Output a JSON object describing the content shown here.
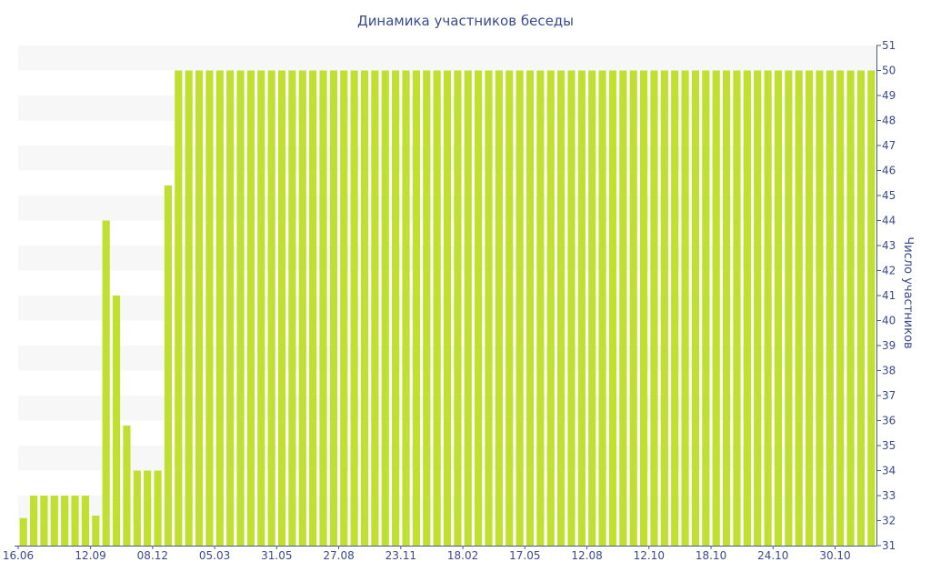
{
  "chart_data": {
    "type": "bar",
    "title": "Динамика участников беседы",
    "ylabel": "Число участников",
    "xlabel": "",
    "ylim": [
      31,
      51
    ],
    "yticks": [
      31,
      32,
      33,
      34,
      35,
      36,
      37,
      38,
      39,
      40,
      41,
      42,
      43,
      44,
      45,
      46,
      47,
      48,
      49,
      50,
      51
    ],
    "x_tick_labels": [
      "16.06",
      "12.09",
      "08.12",
      "05.03",
      "31.05",
      "27.08",
      "23.11",
      "18.02",
      "17.05",
      "12.08",
      "12.10",
      "18.10",
      "24.10",
      "30.10"
    ],
    "x_tick_positions": [
      0,
      6.5,
      12.5,
      18.5,
      24.5,
      30.5,
      36.5,
      42.5,
      48.5,
      54.5,
      60.5,
      66.5,
      72.5,
      78.5
    ],
    "values": [
      32.1,
      33,
      33,
      33,
      33,
      33,
      33,
      32.2,
      44,
      41,
      35.8,
      34,
      34,
      34,
      45.4,
      50,
      50,
      50,
      50,
      50,
      50,
      50,
      50,
      50,
      50,
      50,
      50,
      50,
      50,
      50,
      50,
      50,
      50,
      50,
      50,
      50,
      50,
      50,
      50,
      50,
      50,
      50,
      50,
      50,
      50,
      50,
      50,
      50,
      50,
      50,
      50,
      50,
      50,
      50,
      50,
      50,
      50,
      50,
      50,
      50,
      50,
      50,
      50,
      50,
      50,
      50,
      50,
      50,
      50,
      50,
      50,
      50,
      50,
      50,
      50,
      50,
      50,
      50,
      50,
      50,
      50,
      50,
      50
    ],
    "grid": "horizontal-bands",
    "y_axis_side": "right",
    "colors": {
      "bar": "#bfe031",
      "text": "#3a4a8c",
      "band": "#f7f7f7",
      "axis": "#4a5a8c"
    }
  }
}
